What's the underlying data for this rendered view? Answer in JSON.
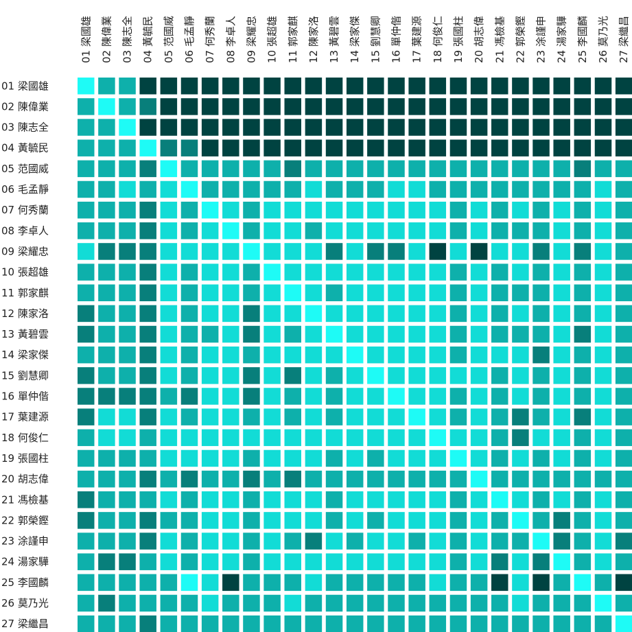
{
  "chart_data": {
    "type": "heatmap",
    "title": "",
    "xlabel": "",
    "ylabel": "",
    "labels": [
      "01 梁國雄",
      "02 陳偉業",
      "03 陳志全",
      "04 黃毓民",
      "05 范國威",
      "06 毛孟靜",
      "07 何秀蘭",
      "08 李卓人",
      "09 梁耀忠",
      "10 張超雄",
      "11 郭家麒",
      "12 陳家洛",
      "13 黃碧雲",
      "14 梁家傑",
      "15 劉慧卿",
      "16 單仲偕",
      "17 葉建源",
      "18 何俊仁",
      "19 張國柱",
      "20 胡志偉",
      "21 馮檢基",
      "22 郭榮鏗",
      "23 涂謹申",
      "24 湯家驊",
      "25 李國麟",
      "26 莫乃光",
      "27 梁繼昌"
    ],
    "scale": {
      "levels": 5,
      "min_color": "#1efbf6",
      "max_color": "#004341",
      "palette": [
        "#1efbf6",
        "#12dcd6",
        "#0eb0ab",
        "#087f7b",
        "#004341"
      ]
    },
    "matrix": [
      [
        0,
        2,
        2,
        4,
        4,
        4,
        4,
        4,
        4,
        4,
        4,
        4,
        4,
        4,
        4,
        4,
        4,
        4,
        4,
        4,
        4,
        4,
        4,
        4,
        4,
        4,
        4
      ],
      [
        2,
        0,
        2,
        3,
        4,
        4,
        4,
        4,
        4,
        4,
        4,
        4,
        4,
        4,
        4,
        4,
        4,
        4,
        4,
        4,
        4,
        4,
        4,
        4,
        4,
        4,
        4
      ],
      [
        2,
        2,
        0,
        4,
        4,
        4,
        4,
        4,
        4,
        4,
        4,
        4,
        4,
        4,
        4,
        4,
        4,
        4,
        4,
        4,
        4,
        4,
        4,
        4,
        4,
        4,
        4
      ],
      [
        2,
        2,
        2,
        0,
        3,
        3,
        4,
        4,
        4,
        4,
        4,
        4,
        4,
        4,
        4,
        4,
        4,
        4,
        4,
        4,
        4,
        4,
        4,
        4,
        4,
        4,
        4
      ],
      [
        2,
        2,
        2,
        3,
        0,
        2,
        2,
        2,
        2,
        2,
        3,
        2,
        2,
        2,
        2,
        2,
        2,
        2,
        2,
        2,
        2,
        2,
        2,
        2,
        3,
        2,
        2
      ],
      [
        2,
        2,
        1,
        2,
        1,
        0,
        2,
        2,
        2,
        2,
        2,
        1,
        2,
        2,
        2,
        1,
        1,
        2,
        2,
        2,
        2,
        2,
        2,
        2,
        2,
        1,
        2
      ],
      [
        2,
        2,
        2,
        3,
        1,
        2,
        0,
        1,
        2,
        1,
        1,
        1,
        1,
        1,
        1,
        1,
        1,
        1,
        2,
        1,
        2,
        1,
        2,
        1,
        2,
        1,
        2
      ],
      [
        2,
        2,
        2,
        3,
        1,
        2,
        1,
        0,
        2,
        1,
        1,
        2,
        1,
        1,
        1,
        1,
        1,
        1,
        2,
        1,
        2,
        2,
        2,
        1,
        2,
        1,
        2
      ],
      [
        1,
        3,
        3,
        3,
        1,
        1,
        1,
        1,
        0,
        1,
        1,
        1,
        3,
        1,
        3,
        3,
        1,
        4,
        1,
        4,
        1,
        1,
        3,
        1,
        3,
        1,
        2
      ],
      [
        2,
        2,
        2,
        3,
        1,
        2,
        1,
        1,
        2,
        0,
        1,
        1,
        1,
        1,
        1,
        1,
        1,
        1,
        2,
        1,
        2,
        1,
        2,
        1,
        2,
        1,
        2
      ],
      [
        2,
        2,
        2,
        3,
        1,
        2,
        1,
        1,
        2,
        1,
        0,
        1,
        2,
        1,
        1,
        1,
        1,
        1,
        2,
        1,
        2,
        2,
        2,
        1,
        2,
        1,
        2
      ],
      [
        3,
        2,
        2,
        3,
        1,
        2,
        1,
        1,
        3,
        1,
        1,
        0,
        1,
        1,
        1,
        1,
        1,
        1,
        2,
        1,
        2,
        1,
        2,
        1,
        2,
        1,
        2
      ],
      [
        3,
        2,
        2,
        3,
        1,
        2,
        2,
        1,
        3,
        1,
        2,
        1,
        0,
        1,
        1,
        1,
        1,
        1,
        2,
        1,
        2,
        2,
        2,
        1,
        3,
        1,
        2
      ],
      [
        2,
        2,
        2,
        3,
        1,
        2,
        1,
        1,
        2,
        1,
        1,
        1,
        1,
        0,
        1,
        1,
        1,
        1,
        2,
        1,
        1,
        1,
        3,
        1,
        2,
        1,
        2
      ],
      [
        3,
        2,
        2,
        3,
        1,
        2,
        1,
        1,
        3,
        1,
        3,
        1,
        2,
        1,
        0,
        1,
        1,
        1,
        1,
        1,
        2,
        1,
        2,
        1,
        2,
        1,
        2
      ],
      [
        3,
        3,
        3,
        3,
        2,
        3,
        1,
        1,
        3,
        1,
        2,
        1,
        2,
        1,
        1,
        0,
        1,
        1,
        2,
        1,
        2,
        1,
        2,
        1,
        2,
        1,
        2
      ],
      [
        3,
        1,
        1,
        3,
        1,
        2,
        1,
        1,
        2,
        1,
        2,
        1,
        2,
        1,
        1,
        1,
        0,
        1,
        2,
        1,
        2,
        3,
        2,
        1,
        3,
        1,
        2
      ],
      [
        2,
        1,
        1,
        2,
        1,
        1,
        1,
        1,
        1,
        1,
        1,
        1,
        1,
        1,
        1,
        1,
        1,
        0,
        1,
        1,
        2,
        3,
        1,
        1,
        2,
        1,
        2
      ],
      [
        2,
        2,
        2,
        2,
        1,
        1,
        1,
        1,
        2,
        1,
        1,
        1,
        2,
        1,
        2,
        1,
        1,
        1,
        0,
        1,
        2,
        1,
        2,
        1,
        2,
        1,
        2
      ],
      [
        2,
        2,
        2,
        3,
        2,
        3,
        2,
        2,
        3,
        2,
        3,
        2,
        2,
        2,
        2,
        2,
        2,
        2,
        2,
        0,
        2,
        2,
        2,
        2,
        2,
        2,
        2
      ],
      [
        3,
        2,
        2,
        2,
        1,
        2,
        1,
        1,
        2,
        1,
        1,
        1,
        2,
        1,
        1,
        1,
        1,
        1,
        2,
        1,
        0,
        1,
        2,
        1,
        2,
        1,
        2
      ],
      [
        3,
        2,
        2,
        3,
        2,
        2,
        1,
        1,
        2,
        1,
        1,
        1,
        2,
        1,
        2,
        1,
        1,
        1,
        2,
        1,
        2,
        0,
        2,
        3,
        2,
        1,
        2
      ],
      [
        2,
        2,
        2,
        3,
        1,
        2,
        1,
        1,
        2,
        1,
        2,
        3,
        1,
        2,
        1,
        1,
        2,
        1,
        2,
        1,
        2,
        2,
        0,
        3,
        2,
        1,
        3
      ],
      [
        2,
        3,
        3,
        2,
        1,
        2,
        1,
        1,
        2,
        1,
        1,
        1,
        1,
        1,
        1,
        1,
        1,
        1,
        2,
        1,
        3,
        1,
        3,
        0,
        2,
        1,
        2
      ],
      [
        2,
        2,
        2,
        2,
        2,
        0,
        1,
        4,
        2,
        2,
        2,
        1,
        2,
        2,
        2,
        2,
        2,
        1,
        2,
        2,
        4,
        1,
        4,
        2,
        0,
        2,
        4
      ],
      [
        2,
        3,
        2,
        2,
        2,
        2,
        1,
        2,
        2,
        2,
        1,
        2,
        2,
        2,
        2,
        2,
        2,
        2,
        2,
        2,
        2,
        1,
        2,
        2,
        2,
        0,
        2
      ],
      [
        2,
        2,
        2,
        3,
        2,
        2,
        2,
        2,
        2,
        2,
        2,
        2,
        2,
        2,
        2,
        2,
        2,
        2,
        2,
        2,
        2,
        2,
        2,
        2,
        2,
        2,
        0
      ]
    ]
  }
}
